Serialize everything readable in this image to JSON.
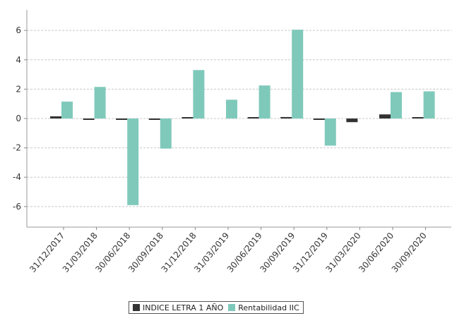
{
  "chart_data": {
    "type": "bar",
    "categories": [
      "31/12/2017",
      "31/03/2018",
      "30/06/2018",
      "30/09/2018",
      "31/12/2018",
      "31/03/2019",
      "30/06/2019",
      "30/09/2019",
      "31/12/2019",
      "31/03/2020",
      "30/06/2020",
      "30/09/2020"
    ],
    "series": [
      {
        "name": "INDICE LETRA 1 AÑO",
        "color": "#333333",
        "values": [
          0.15,
          -0.08,
          -0.03,
          -0.07,
          0.05,
          0.0,
          0.08,
          0.1,
          -0.05,
          -0.25,
          0.28,
          0.05
        ]
      },
      {
        "name": "Rentabilidad IIC",
        "color": "#7fc9bb",
        "values": [
          1.15,
          2.15,
          -5.9,
          -2.05,
          3.3,
          1.28,
          2.25,
          6.05,
          -1.85,
          0.0,
          1.8,
          1.85
        ]
      }
    ],
    "yticks": [
      6,
      4,
      2,
      0,
      -2,
      -4,
      -6
    ],
    "ylim": [
      -7.4,
      7.4
    ],
    "grid": true,
    "legend": "bottom-center"
  }
}
